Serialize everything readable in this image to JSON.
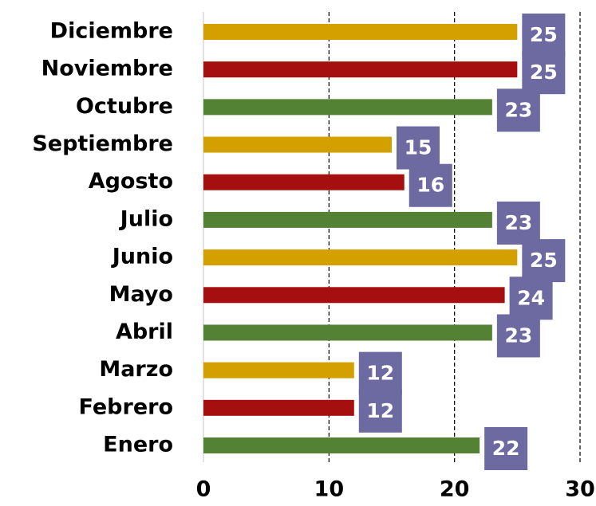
{
  "chart_data": {
    "type": "barh",
    "categories": [
      "Enero",
      "Febrero",
      "Marzo",
      "Abril",
      "Mayo",
      "Junio",
      "Julio",
      "Agosto",
      "Septiembre",
      "Octubre",
      "Noviembre",
      "Diciembre"
    ],
    "values": [
      22,
      12,
      12,
      23,
      24,
      25,
      23,
      16,
      15,
      23,
      25,
      25
    ],
    "colors": [
      "#548235",
      "#a50f0f",
      "#d4a000",
      "#548235",
      "#a50f0f",
      "#d4a000",
      "#548235",
      "#a50f0f",
      "#d4a000",
      "#548235",
      "#a50f0f",
      "#d4a000"
    ],
    "label_color": "#6c6aa0",
    "xlim": [
      0,
      30
    ],
    "xticks": [
      0,
      10,
      20,
      30
    ],
    "grid": true
  }
}
